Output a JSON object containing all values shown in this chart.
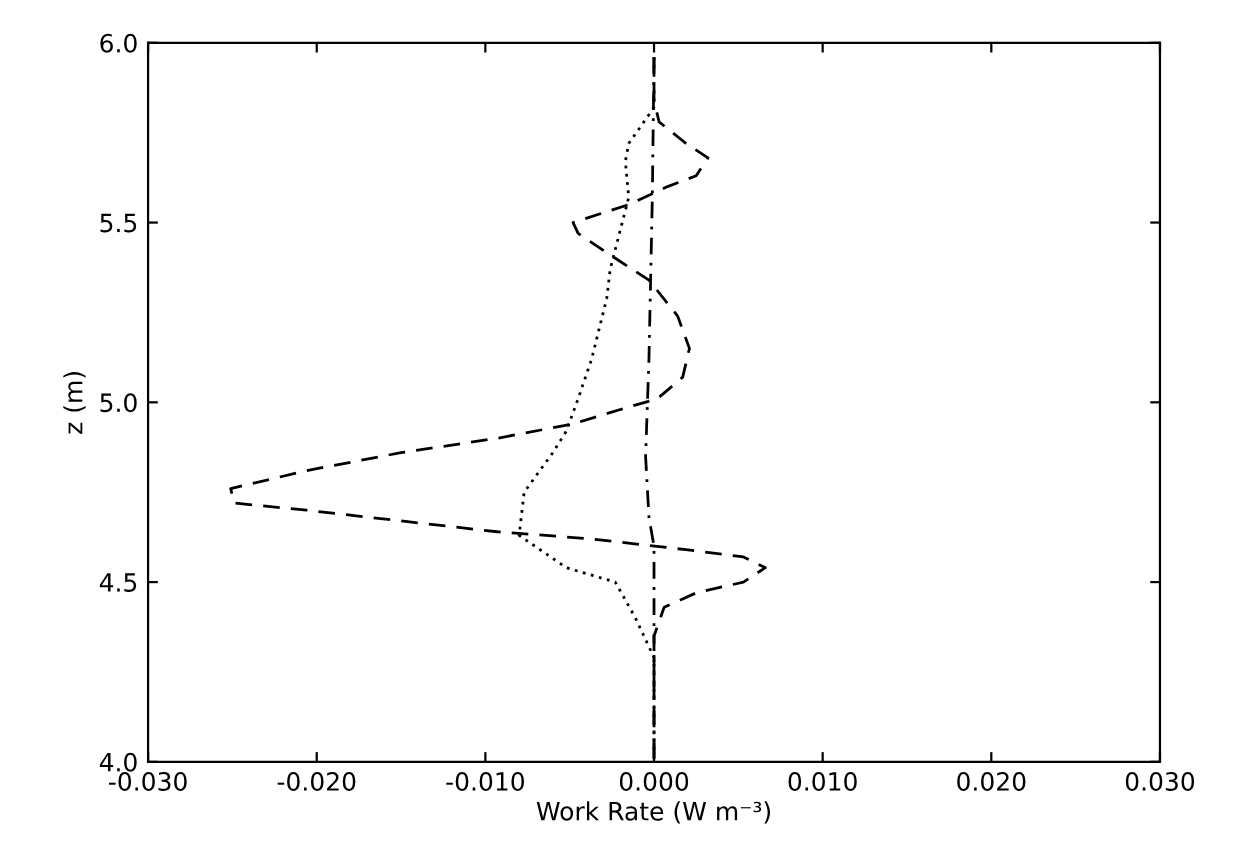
{
  "chart_data": {
    "type": "line",
    "xlabel": "Work Rate (W m⁻³)",
    "ylabel": "z (m)",
    "xlim": [
      -0.03,
      0.03
    ],
    "xticks": [
      {
        "value": -0.03,
        "label": "-0.030"
      },
      {
        "value": -0.02,
        "label": "-0.020"
      },
      {
        "value": -0.01,
        "label": "-0.010"
      },
      {
        "value": 0,
        "label": "0.000"
      },
      {
        "value": 0.01,
        "label": "0.010"
      },
      {
        "value": 0.02,
        "label": "0.020"
      },
      {
        "value": 0.03,
        "label": "0.030"
      }
    ],
    "ylim": [
      4.0,
      6.0
    ],
    "yticks": [
      {
        "value": 4.0,
        "label": "4.0"
      },
      {
        "value": 4.5,
        "label": "4.5"
      },
      {
        "value": 5.0,
        "label": "5.0"
      },
      {
        "value": 5.5,
        "label": "5.5"
      },
      {
        "value": 6.0,
        "label": "6.0"
      }
    ],
    "grid": false,
    "legend": false,
    "series": [
      {
        "color": "#000000",
        "line_style": "dashed",
        "x": [
          0,
          0,
          0.0003,
          0.0019,
          0.0032,
          0.0025,
          0.0008,
          -0.0015,
          -0.0048,
          -0.0045,
          -0.0026,
          -0.0003,
          0.0014,
          0.0021,
          0.0017,
          0.0002,
          -0.002,
          -0.0048,
          -0.0093,
          -0.015,
          -0.0206,
          -0.0251,
          -0.0249,
          -0.0206,
          -0.015,
          -0.0093,
          -0.0037,
          0.0019,
          0.0053,
          0.0066,
          0.0053,
          0.0025,
          0.0006,
          0,
          0
        ],
        "values": [
          5.96,
          5.84,
          5.78,
          5.72,
          5.68,
          5.63,
          5.6,
          5.55,
          5.5,
          5.47,
          5.41,
          5.34,
          5.24,
          5.15,
          5.07,
          5.01,
          4.98,
          4.94,
          4.9,
          4.86,
          4.81,
          4.76,
          4.72,
          4.7,
          4.67,
          4.64,
          4.62,
          4.59,
          4.57,
          4.54,
          4.5,
          4.47,
          4.43,
          4.35,
          4.0
        ]
      },
      {
        "color": "#000000",
        "line_style": "dotted",
        "x": [
          0,
          0,
          -0.0015,
          -0.0017,
          -0.0015,
          -0.0026,
          -0.0028,
          -0.0037,
          -0.0045,
          -0.0052,
          -0.006,
          -0.0077,
          -0.008,
          -0.0052,
          -0.0023,
          -0.0011,
          0,
          0
        ],
        "values": [
          5.96,
          5.82,
          5.72,
          5.67,
          5.57,
          5.37,
          5.29,
          5.12,
          5.01,
          4.92,
          4.86,
          4.75,
          4.63,
          4.54,
          4.5,
          4.4,
          4.29,
          4.0
        ]
      },
      {
        "color": "#000000",
        "line_style": "dashdot",
        "x": [
          0,
          -0.0001,
          -0.0003,
          -0.0005,
          -0.0003,
          0,
          0,
          0
        ],
        "values": [
          5.96,
          5.57,
          5.12,
          4.85,
          4.68,
          4.6,
          4.46,
          4.0
        ]
      }
    ]
  }
}
